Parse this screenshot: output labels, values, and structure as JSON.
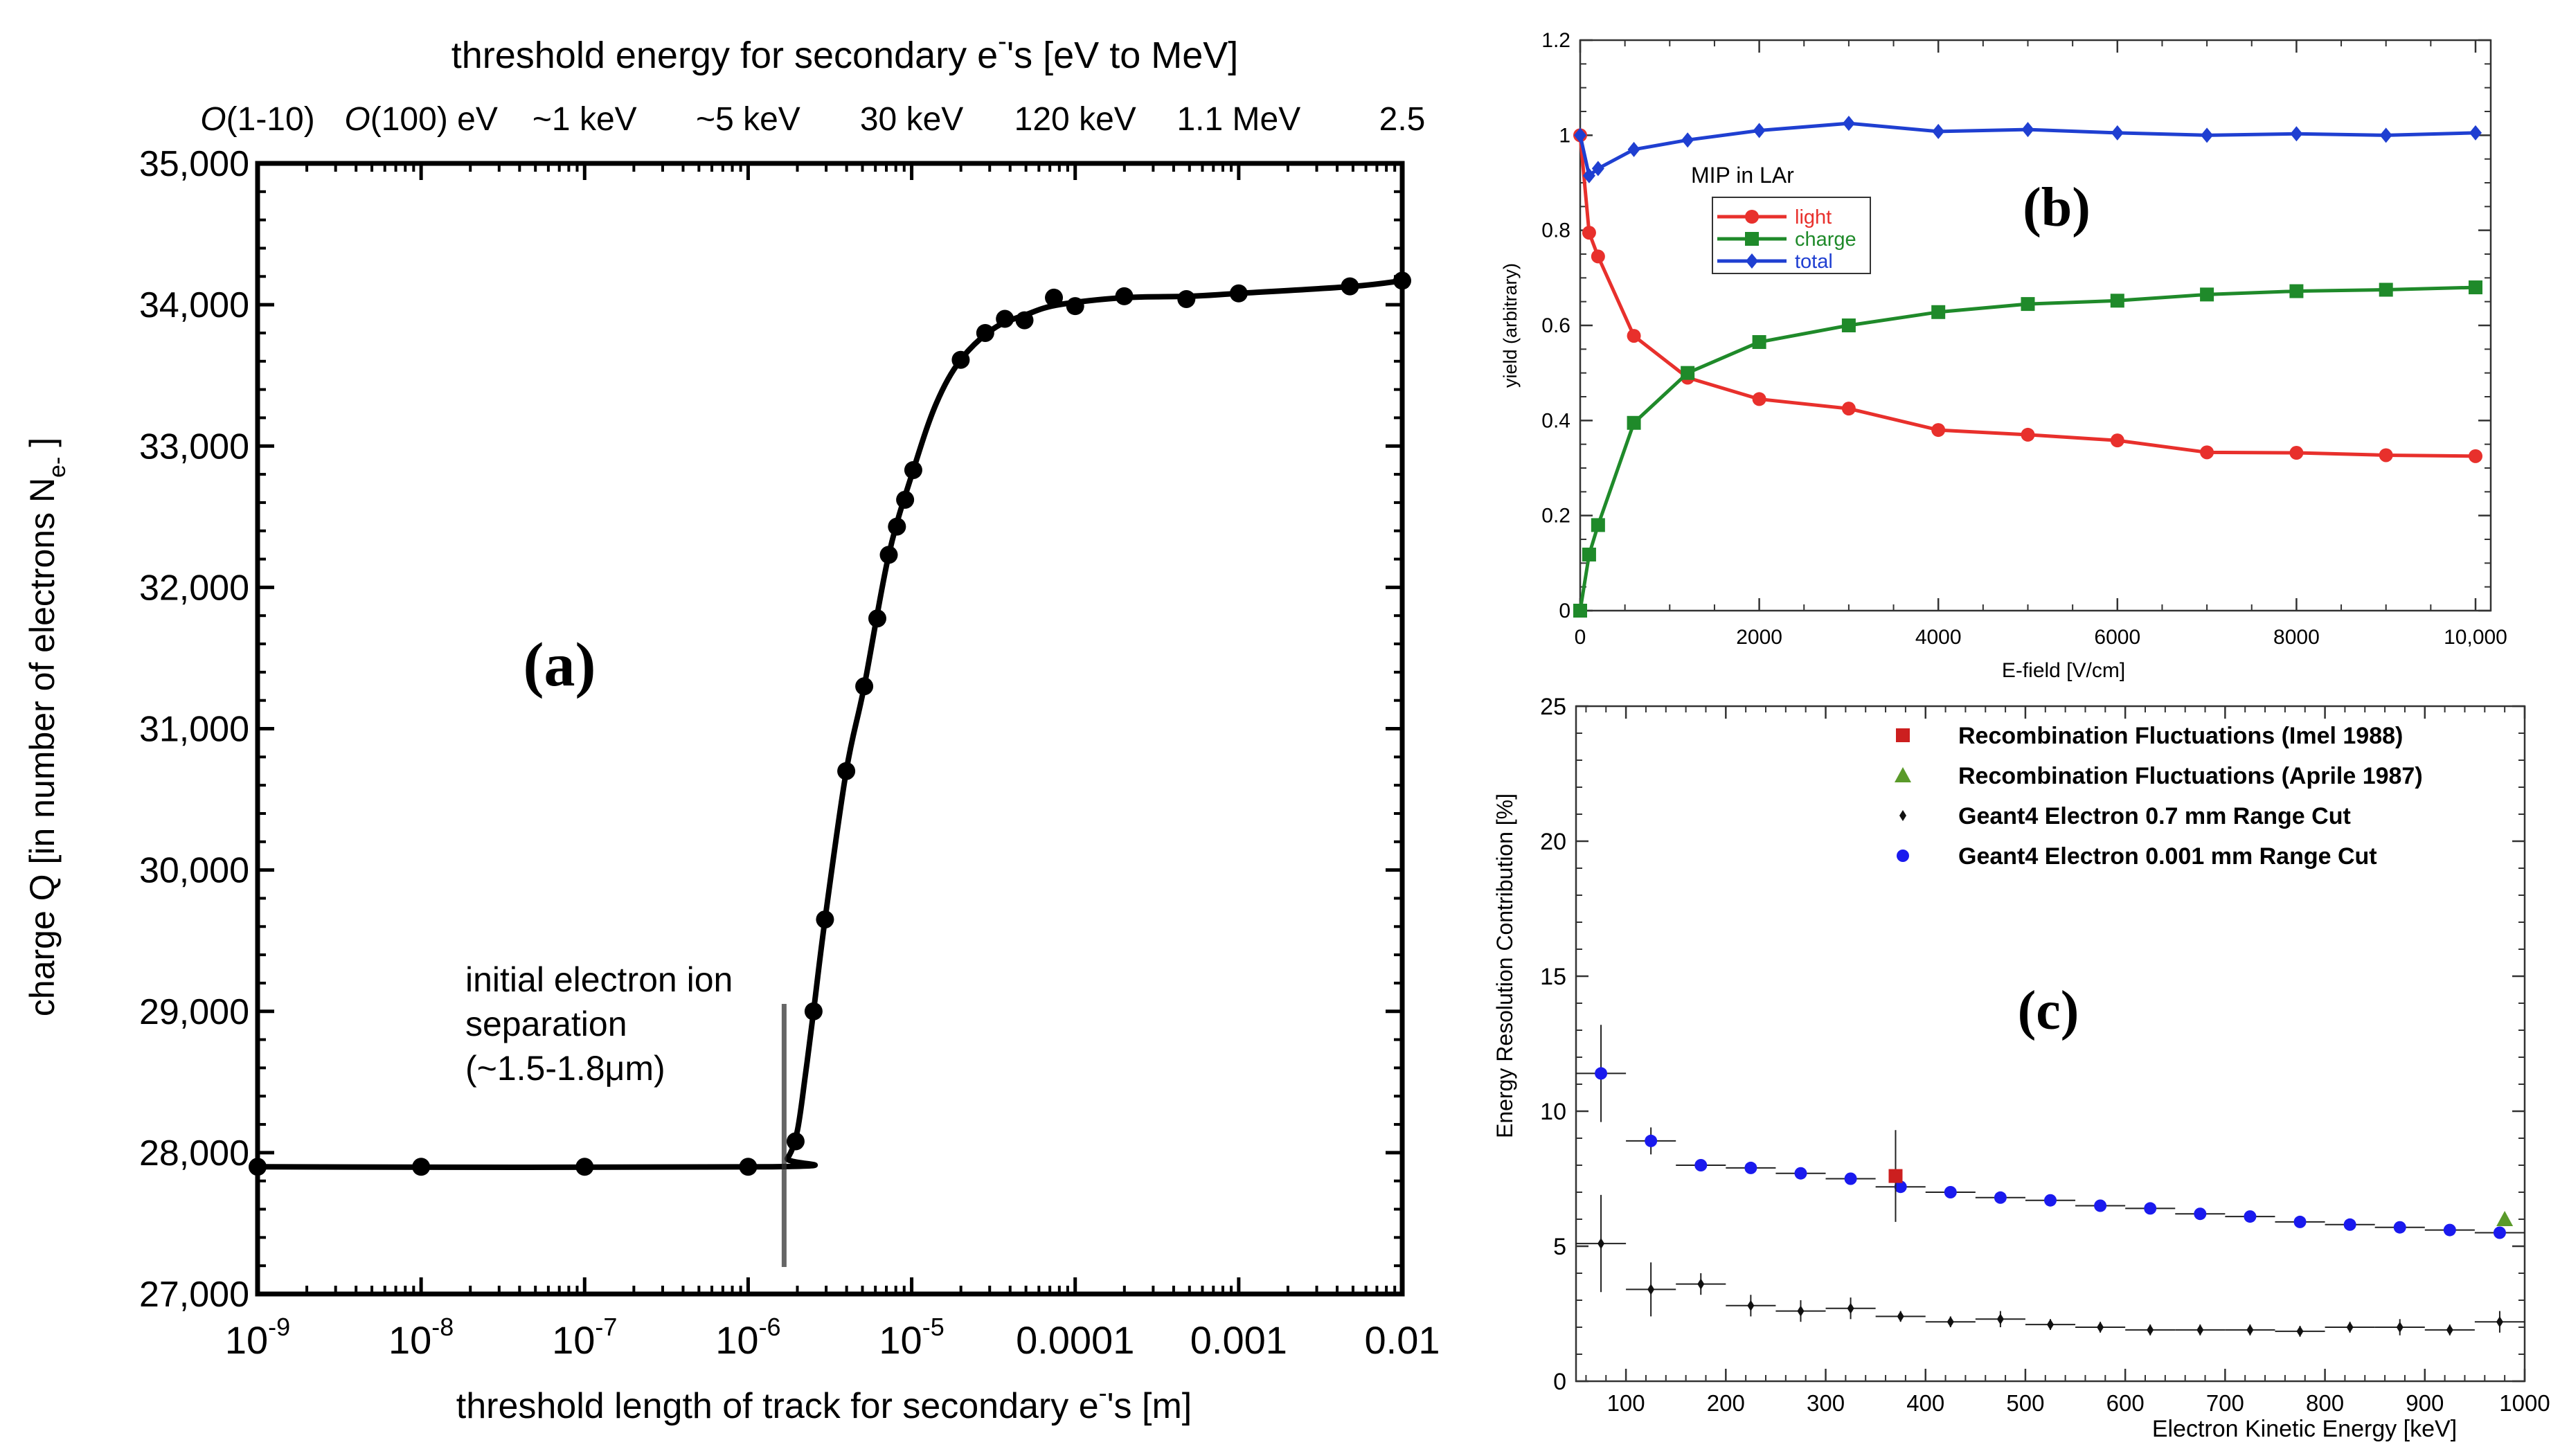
{
  "chart_data": [
    {
      "id": "a",
      "type": "line",
      "panel_label": "(a)",
      "top_title": "threshold energy for secondary e",
      "top_title_sup": "-",
      "top_title_tail": "'s [eV to MeV]",
      "top_ticks": [
        {
          "x_log": -9.0,
          "italic": "O",
          "text": "(1-10)"
        },
        {
          "x_log": -8.0,
          "italic": "O",
          "text": "(100) eV"
        },
        {
          "x_log": -7.0,
          "text": "~1 keV"
        },
        {
          "x_log": -6.0,
          "text": "~5 keV"
        },
        {
          "x_log": -5.0,
          "text": "30 keV"
        },
        {
          "x_log": -4.0,
          "text": "120 keV"
        },
        {
          "x_log": -3.0,
          "text": "1.1 MeV"
        },
        {
          "x_log": -2.0,
          "text": "2.5"
        }
      ],
      "xlabel": "threshold length of track for secondary e",
      "xlabel_sup": "-",
      "xlabel_tail": "'s [m]",
      "ylabel": "charge Q [in number of electrons N",
      "ylabel_sub": "e-",
      "ylabel_tail": " ]",
      "xscale": "log",
      "xlim_log": [
        -9,
        -2
      ],
      "ylim": [
        27000,
        35000
      ],
      "x_ticks": [
        {
          "x_log": -9,
          "base": "10",
          "exp": "-9"
        },
        {
          "x_log": -8,
          "base": "10",
          "exp": "-8"
        },
        {
          "x_log": -7,
          "base": "10",
          "exp": "-7"
        },
        {
          "x_log": -6,
          "base": "10",
          "exp": "-6"
        },
        {
          "x_log": -5,
          "base": "10",
          "exp": "-5"
        },
        {
          "x_log": -4,
          "base": "0.0001"
        },
        {
          "x_log": -3,
          "base": "0.001"
        },
        {
          "x_log": -2,
          "base": "0.01"
        }
      ],
      "y_ticks": [
        {
          "value": 27000,
          "label": "27,000"
        },
        {
          "value": 28000,
          "label": "28,000"
        },
        {
          "value": 29000,
          "label": "29,000"
        },
        {
          "value": 30000,
          "label": "30,000"
        },
        {
          "value": 31000,
          "label": "31,000"
        },
        {
          "value": 32000,
          "label": "32,000"
        },
        {
          "value": 33000,
          "label": "33,000"
        },
        {
          "value": 34000,
          "label": "34,000"
        },
        {
          "value": 35000,
          "label": "35,000"
        }
      ],
      "annotation": [
        "initial electron ion",
        "separation",
        "(~1.5-1.8",
        "μm)"
      ],
      "annotation_line_x_log": -5.78,
      "points": [
        {
          "x_log": -9.0,
          "y": 27900
        },
        {
          "x_log": -8.0,
          "y": 27900
        },
        {
          "x_log": -7.0,
          "y": 27900
        },
        {
          "x_log": -6.0,
          "y": 27900
        },
        {
          "x_log": -5.71,
          "y": 28080
        },
        {
          "x_log": -5.6,
          "y": 29000
        },
        {
          "x_log": -5.53,
          "y": 29650
        },
        {
          "x_log": -5.4,
          "y": 30700
        },
        {
          "x_log": -5.29,
          "y": 31300
        },
        {
          "x_log": -5.21,
          "y": 31780
        },
        {
          "x_log": -5.14,
          "y": 32230
        },
        {
          "x_log": -5.09,
          "y": 32430
        },
        {
          "x_log": -5.04,
          "y": 32620
        },
        {
          "x_log": -4.99,
          "y": 32830
        },
        {
          "x_log": -4.7,
          "y": 33610
        },
        {
          "x_log": -4.55,
          "y": 33800
        },
        {
          "x_log": -4.43,
          "y": 33900
        },
        {
          "x_log": -4.31,
          "y": 33890
        },
        {
          "x_log": -4.13,
          "y": 34050
        },
        {
          "x_log": -4.0,
          "y": 33990
        },
        {
          "x_log": -3.7,
          "y": 34060
        },
        {
          "x_log": -3.32,
          "y": 34040
        },
        {
          "x_log": -3.0,
          "y": 34080
        },
        {
          "x_log": -2.32,
          "y": 34130
        },
        {
          "x_log": -2.0,
          "y": 34170
        }
      ],
      "curve": [
        {
          "x_log": -9.1,
          "y": 27900
        },
        {
          "x_log": -5.85,
          "y": 27900
        },
        {
          "x_log": -5.76,
          "y": 27960
        },
        {
          "x_log": -5.7,
          "y": 28150
        },
        {
          "x_log": -5.65,
          "y": 28550
        },
        {
          "x_log": -5.6,
          "y": 29000
        },
        {
          "x_log": -5.53,
          "y": 29650
        },
        {
          "x_log": -5.4,
          "y": 30700
        },
        {
          "x_log": -5.29,
          "y": 31300
        },
        {
          "x_log": -5.14,
          "y": 32230
        },
        {
          "x_log": -4.99,
          "y": 32830
        },
        {
          "x_log": -4.85,
          "y": 33300
        },
        {
          "x_log": -4.7,
          "y": 33610
        },
        {
          "x_log": -4.5,
          "y": 33830
        },
        {
          "x_log": -4.3,
          "y": 33930
        },
        {
          "x_log": -4.1,
          "y": 34000
        },
        {
          "x_log": -3.7,
          "y": 34050
        },
        {
          "x_log": -3.3,
          "y": 34060
        },
        {
          "x_log": -3.0,
          "y": 34080
        },
        {
          "x_log": -2.3,
          "y": 34130
        },
        {
          "x_log": -2.0,
          "y": 34170
        }
      ]
    },
    {
      "id": "b",
      "type": "line",
      "panel_label": "(b)",
      "xlabel": "E-field [V/cm]",
      "ylabel": "yield (arbitrary)",
      "xlim": [
        0,
        10500
      ],
      "ylim": [
        0,
        1.2
      ],
      "x_ticks": [
        0,
        2000,
        4000,
        6000,
        8000,
        10000
      ],
      "x_tick_labels": [
        "0",
        "2000",
        "4000",
        "6000",
        "8000",
        "10,000"
      ],
      "y_ticks": [
        0,
        0.2,
        0.4,
        0.6,
        0.8,
        1,
        1.2
      ],
      "y_tick_labels": [
        "0",
        "0.2",
        "0.4",
        "0.6",
        "0.8",
        "1",
        "1.2"
      ],
      "legend_title": "MIP in LAr",
      "legend_position": "upper-left",
      "series": [
        {
          "name": "light",
          "color": "#e8302c",
          "marker": "circle",
          "x": [
            0,
            100,
            200,
            600,
            1200,
            2000,
            3000,
            4000,
            5000,
            6000,
            7000,
            8000,
            9000,
            10000
          ],
          "y": [
            1.0,
            0.795,
            0.745,
            0.578,
            0.49,
            0.445,
            0.425,
            0.38,
            0.37,
            0.358,
            0.333,
            0.332,
            0.327,
            0.325
          ]
        },
        {
          "name": "charge",
          "color": "#1f8a2a",
          "marker": "square",
          "x": [
            0,
            100,
            200,
            600,
            1200,
            2000,
            3000,
            4000,
            5000,
            6000,
            7000,
            8000,
            9000,
            10000
          ],
          "y": [
            0.0,
            0.118,
            0.18,
            0.395,
            0.5,
            0.565,
            0.6,
            0.628,
            0.645,
            0.652,
            0.665,
            0.672,
            0.675,
            0.68
          ]
        },
        {
          "name": "total",
          "color": "#1f3fd1",
          "marker": "diamond",
          "x": [
            0,
            100,
            200,
            600,
            1200,
            2000,
            3000,
            4000,
            5000,
            6000,
            7000,
            8000,
            9000,
            10000
          ],
          "y": [
            1.0,
            0.915,
            0.93,
            0.97,
            0.99,
            1.01,
            1.025,
            1.008,
            1.012,
            1.005,
            1.0,
            1.003,
            1.0,
            1.005
          ]
        }
      ]
    },
    {
      "id": "c",
      "type": "scatter",
      "panel_label": "(c)",
      "xlabel": "Electron Kinetic Energy [keV]",
      "ylabel": "Energy Resolution Contribution [%]",
      "xlim": [
        50,
        1000
      ],
      "ylim": [
        0,
        25
      ],
      "x_ticks": [
        100,
        200,
        300,
        400,
        500,
        600,
        700,
        800,
        900,
        1000
      ],
      "y_ticks": [
        0,
        5,
        10,
        15,
        20,
        25
      ],
      "legend_position": "top-right",
      "series": [
        {
          "name": "Recombination Fluctuations (Imel 1988)",
          "color": "#cc1f1f",
          "marker": "square",
          "points": [
            {
              "x": 370,
              "y": 7.6,
              "yerr": 1.7
            }
          ]
        },
        {
          "name": "Recombination Fluctuations (Aprile 1987)",
          "color": "#5a9a2a",
          "marker": "triangle",
          "points": [
            {
              "x": 980,
              "y": 6.0,
              "yerr": 0
            }
          ]
        },
        {
          "name": "Geant4 Electron 0.7 mm Range Cut",
          "color": "#111111",
          "marker": "small-diamond",
          "points": [
            {
              "x": 75,
              "y": 5.1,
              "xerr": 25,
              "yerr": 1.8
            },
            {
              "x": 125,
              "y": 3.4,
              "xerr": 25,
              "yerr": 1.0
            },
            {
              "x": 175,
              "y": 3.6,
              "xerr": 25,
              "yerr": 0.4
            },
            {
              "x": 225,
              "y": 2.8,
              "xerr": 25,
              "yerr": 0.4
            },
            {
              "x": 275,
              "y": 2.6,
              "xerr": 25,
              "yerr": 0.4
            },
            {
              "x": 325,
              "y": 2.7,
              "xerr": 25,
              "yerr": 0.4
            },
            {
              "x": 375,
              "y": 2.4,
              "xerr": 25,
              "yerr": 0.2
            },
            {
              "x": 425,
              "y": 2.2,
              "xerr": 25,
              "yerr": 0.2
            },
            {
              "x": 475,
              "y": 2.3,
              "xerr": 25,
              "yerr": 0.3
            },
            {
              "x": 525,
              "y": 2.1,
              "xerr": 25,
              "yerr": 0.2
            },
            {
              "x": 575,
              "y": 2.0,
              "xerr": 25,
              "yerr": 0.2
            },
            {
              "x": 625,
              "y": 1.9,
              "xerr": 25,
              "yerr": 0.2
            },
            {
              "x": 675,
              "y": 1.9,
              "xerr": 25,
              "yerr": 0.2
            },
            {
              "x": 725,
              "y": 1.9,
              "xerr": 25,
              "yerr": 0.2
            },
            {
              "x": 775,
              "y": 1.85,
              "xerr": 25,
              "yerr": 0.2
            },
            {
              "x": 825,
              "y": 2.0,
              "xerr": 25,
              "yerr": 0.2
            },
            {
              "x": 875,
              "y": 2.0,
              "xerr": 25,
              "yerr": 0.3
            },
            {
              "x": 925,
              "y": 1.9,
              "xerr": 25,
              "yerr": 0.2
            },
            {
              "x": 975,
              "y": 2.2,
              "xerr": 25,
              "yerr": 0.4
            }
          ]
        },
        {
          "name": "Geant4 Electron 0.001 mm Range Cut",
          "color": "#1a1aee",
          "marker": "circle",
          "points": [
            {
              "x": 75,
              "y": 11.4,
              "xerr": 25,
              "yerr": 1.8
            },
            {
              "x": 125,
              "y": 8.9,
              "xerr": 25,
              "yerr": 0.5
            },
            {
              "x": 175,
              "y": 8.0,
              "xerr": 25,
              "yerr": 0.15
            },
            {
              "x": 225,
              "y": 7.9,
              "xerr": 25,
              "yerr": 0.1
            },
            {
              "x": 275,
              "y": 7.7,
              "xerr": 25,
              "yerr": 0.1
            },
            {
              "x": 325,
              "y": 7.5,
              "xerr": 25,
              "yerr": 0.1
            },
            {
              "x": 375,
              "y": 7.2,
              "xerr": 25,
              "yerr": 0.1
            },
            {
              "x": 425,
              "y": 7.0,
              "xerr": 25,
              "yerr": 0.1
            },
            {
              "x": 475,
              "y": 6.8,
              "xerr": 25,
              "yerr": 0.1
            },
            {
              "x": 525,
              "y": 6.7,
              "xerr": 25,
              "yerr": 0.1
            },
            {
              "x": 575,
              "y": 6.5,
              "xerr": 25,
              "yerr": 0.1
            },
            {
              "x": 625,
              "y": 6.4,
              "xerr": 25,
              "yerr": 0.1
            },
            {
              "x": 675,
              "y": 6.2,
              "xerr": 25,
              "yerr": 0.1
            },
            {
              "x": 725,
              "y": 6.1,
              "xerr": 25,
              "yerr": 0.1
            },
            {
              "x": 775,
              "y": 5.9,
              "xerr": 25,
              "yerr": 0.1
            },
            {
              "x": 825,
              "y": 5.8,
              "xerr": 25,
              "yerr": 0.1
            },
            {
              "x": 875,
              "y": 5.7,
              "xerr": 25,
              "yerr": 0.1
            },
            {
              "x": 925,
              "y": 5.6,
              "xerr": 25,
              "yerr": 0.1
            },
            {
              "x": 975,
              "y": 5.5,
              "xerr": 25,
              "yerr": 0.1
            }
          ]
        }
      ]
    }
  ]
}
